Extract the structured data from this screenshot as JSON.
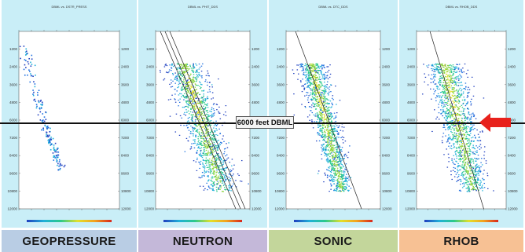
{
  "colors": {
    "accent_arrow": "#e8211c",
    "panel_bg": "#c9eef7",
    "footer_geopressure": "#b9cde4",
    "footer_neutron": "#c4b8d9",
    "footer_sonic": "#c3d69b",
    "footer_rhob": "#f7c194"
  },
  "marker_label": "6000 feet DBML",
  "footer": {
    "geopressure": "GEOPRESSURE",
    "neutron": "NEUTRON",
    "sonic": "SONIC",
    "rhob": "RHOB"
  },
  "chart_data": [
    {
      "type": "scatter",
      "title": "DBML vs. DSTR_PRESS",
      "series_kind": "sparse",
      "yticks": [
        1200,
        2400,
        3600,
        4800,
        6000,
        7200,
        8400,
        9600,
        10800,
        12000
      ],
      "ylim": [
        0,
        12000
      ],
      "xlim": [
        0,
        12000
      ],
      "trend": null
    },
    {
      "type": "scatter",
      "title": "DBML vs. PHIT_DDS",
      "series_kind": "dense",
      "yticks": [
        1200,
        2400,
        3600,
        4800,
        6000,
        7200,
        8400,
        9600,
        10800,
        12000
      ],
      "ylim": [
        0,
        12000
      ],
      "xlim": [
        0,
        100
      ],
      "trend": "decreasing"
    },
    {
      "type": "scatter",
      "title": "DBML vs. DTC_DDS",
      "series_kind": "dense",
      "yticks": [
        1200,
        2400,
        3600,
        4800,
        6000,
        7200,
        8400,
        9600,
        10800,
        12000
      ],
      "ylim": [
        0,
        12000
      ],
      "xlim": [
        0,
        100
      ],
      "trend": "decreasing"
    },
    {
      "type": "scatter",
      "title": "DBML vs. RHOB_DDS",
      "series_kind": "dense",
      "yticks": [
        1200,
        2400,
        3600,
        4800,
        6000,
        7200,
        8400,
        9600,
        10800,
        12000
      ],
      "ylim": [
        0,
        12000
      ],
      "xlim": [
        1.6,
        2.8
      ],
      "trend": "increasing"
    }
  ]
}
